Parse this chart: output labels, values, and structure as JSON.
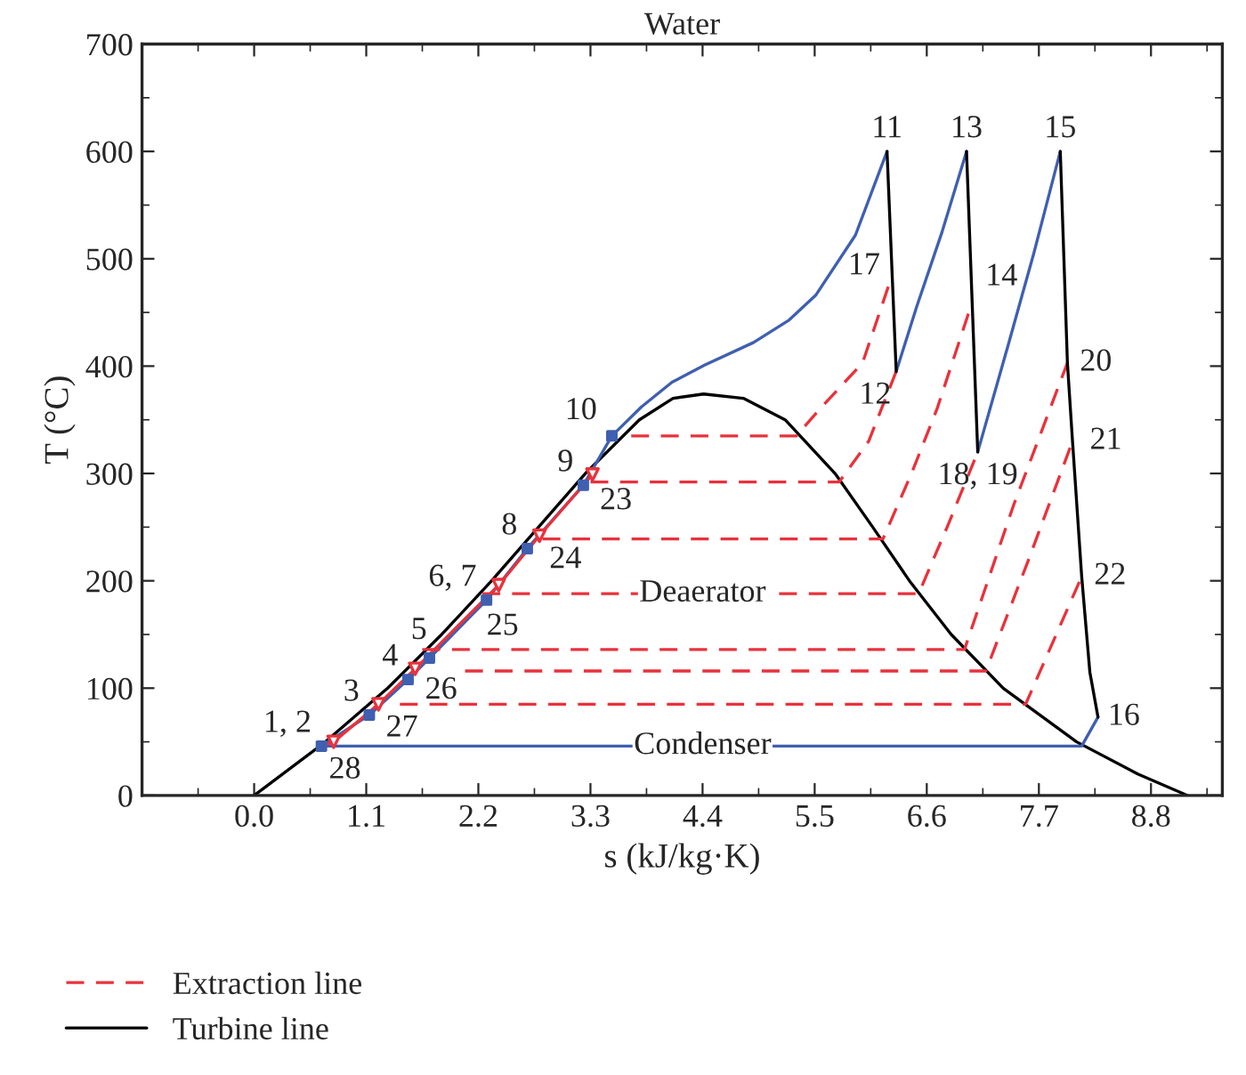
{
  "chart_data": {
    "type": "line",
    "title": "Water",
    "xlabel": "s (kJ/kg·K)",
    "ylabel": "T (°C)",
    "xlim": [
      -1.1,
      9.5
    ],
    "ylim": [
      0,
      700
    ],
    "xticks": [
      {
        "value": 0,
        "label": "0.0"
      },
      1.1,
      2.2,
      3.3,
      4.4,
      5.5,
      6.6,
      7.7,
      8.8
    ],
    "yticks": [
      0,
      100,
      200,
      300,
      400,
      500,
      600,
      700
    ],
    "grid": false,
    "legend": "bottom left",
    "series": [
      {
        "color": "#000000",
        "line_style": "solid",
        "x": [
          0,
          0.7,
          1.31,
          1.84,
          2.33,
          2.79,
          3.25,
          3.78,
          4.11,
          4.41,
          4.8,
          5.21,
          5.7,
          6.07,
          6.43,
          6.84,
          7.35,
          8.07,
          8.67,
          9.16
        ],
        "values": [
          0,
          50,
          100,
          150,
          200,
          250,
          300,
          350,
          370,
          374,
          370,
          350,
          300,
          250,
          200,
          150,
          100,
          50,
          20,
          0
        ]
      },
      {
        "color": "#3f5fb0",
        "line_style": "solid",
        "x": [
          0.66,
          1.13,
          1.51,
          1.72,
          2.28,
          2.68,
          3.23,
          3.51,
          3.8,
          4.1,
          4.42,
          4.9,
          5.25,
          5.51,
          5.9,
          6.21,
          null,
          6.3,
          6.5,
          6.75,
          6.99,
          null,
          7.1,
          7.4,
          7.65,
          7.91,
          null,
          8.28,
          8.12,
          0.66
        ],
        "values": [
          46,
          75,
          108,
          128,
          182,
          230,
          289,
          335,
          362,
          385,
          401,
          422,
          443,
          466,
          522,
          600,
          null,
          395,
          455,
          525,
          600,
          null,
          320,
          420,
          505,
          600,
          null,
          73,
          46,
          46
        ]
      },
      {
        "name": "Extraction line",
        "color": "#e8323c",
        "line_style": "dashed",
        "x": [
          3.7,
          5.32,
          5.55,
          5.97,
          6.24,
          null,
          3.3,
          5.74,
          6.03,
          6.3,
          null,
          2.83,
          6.17,
          6.45,
          6.7,
          7.03,
          null,
          2.24,
          6.52,
          6.8,
          7.1,
          null,
          1.65,
          6.97,
          7.45,
          7.98,
          null,
          2.07,
          7.18,
          7.6,
          8.03,
          null,
          1.43,
          7.57,
          8.12
        ],
        "values": [
          335,
          335,
          360,
          403,
          479,
          null,
          292,
          292,
          330,
          395,
          null,
          239,
          239,
          300,
          360,
          455,
          null,
          188,
          188,
          250,
          320,
          null,
          136,
          136,
          270,
          403,
          null,
          116,
          116,
          220,
          330,
          null,
          85,
          85,
          204
        ]
      },
      {
        "name": "Turbine line",
        "color": "#000000",
        "line_style": "solid",
        "x": [
          6.21,
          6.3,
          null,
          6.99,
          7.1,
          null,
          7.91,
          7.98,
          8.03,
          8.12,
          8.2,
          8.28
        ],
        "values": [
          600,
          395,
          null,
          600,
          320,
          null,
          600,
          403,
          330,
          204,
          115,
          73
        ]
      },
      {
        "color": "#e8323c",
        "line_style": "solid",
        "x": [
          0.66,
          0.78,
          1.22,
          1.58,
          2.4,
          2.8,
          3.32
        ],
        "values": [
          46,
          50,
          85,
          118,
          196,
          242,
          299
        ]
      },
      {
        "type": "scatter",
        "color": "#3f5fb0",
        "marker": "square",
        "x": [
          0.66,
          1.13,
          1.51,
          1.72,
          2.28,
          2.68,
          3.23,
          3.51
        ],
        "values": [
          46,
          75,
          108,
          128,
          182,
          230,
          289,
          335
        ]
      },
      {
        "type": "scatter",
        "color": "#e8323c",
        "marker": "triangle",
        "x": [
          0.78,
          1.22,
          1.58,
          2.4,
          2.8,
          3.32
        ],
        "values": [
          50,
          85,
          118,
          196,
          242,
          299
        ]
      }
    ],
    "annotations": [
      {
        "text": "1, 2",
        "x": 0.66,
        "y": 46
      },
      {
        "text": "28",
        "x": 0.66,
        "y": 46
      },
      {
        "text": "3",
        "x": 1.13,
        "y": 75
      },
      {
        "text": "27",
        "x": 1.22,
        "y": 85
      },
      {
        "text": "4",
        "x": 1.51,
        "y": 108
      },
      {
        "text": "26",
        "x": 1.58,
        "y": 118
      },
      {
        "text": "5",
        "x": 1.72,
        "y": 128
      },
      {
        "text": "6, 7",
        "x": 2.28,
        "y": 182
      },
      {
        "text": "25",
        "x": 2.28,
        "y": 182
      },
      {
        "text": "8",
        "x": 2.68,
        "y": 230
      },
      {
        "text": "24",
        "x": 2.8,
        "y": 242
      },
      {
        "text": "9",
        "x": 3.23,
        "y": 289
      },
      {
        "text": "23",
        "x": 3.32,
        "y": 299
      },
      {
        "text": "10",
        "x": 3.51,
        "y": 335
      },
      {
        "text": "11",
        "x": 6.21,
        "y": 600
      },
      {
        "text": "12",
        "x": 6.3,
        "y": 395
      },
      {
        "text": "13",
        "x": 6.99,
        "y": 600
      },
      {
        "text": "14",
        "x": 7.03,
        "y": 455
      },
      {
        "text": "15",
        "x": 7.91,
        "y": 600
      },
      {
        "text": "16",
        "x": 8.28,
        "y": 73
      },
      {
        "text": "17",
        "x": 6.24,
        "y": 479
      },
      {
        "text": "18, 19",
        "x": 7.1,
        "y": 320
      },
      {
        "text": "20",
        "x": 7.98,
        "y": 403
      },
      {
        "text": "21",
        "x": 8.03,
        "y": 330
      },
      {
        "text": "22",
        "x": 8.12,
        "y": 204
      },
      {
        "text": "Deaerator",
        "x": 4.4,
        "y": 188
      },
      {
        "text": "Condenser",
        "x": 4.4,
        "y": 46
      }
    ]
  }
}
